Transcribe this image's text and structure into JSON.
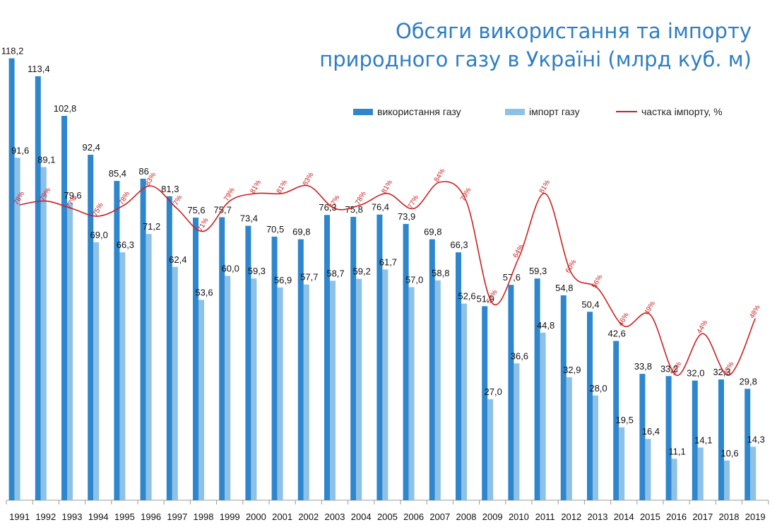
{
  "colors": {
    "usage": "#2e86cd",
    "import": "#8ec1e6",
    "share": "#cc1f1f",
    "title": "#2f7ec2",
    "axis": "#999999"
  },
  "chart_data": {
    "type": "bar",
    "title": [
      "Обсяги використання та імпорту",
      "природного газу в Україні (млрд куб. м)"
    ],
    "categories": [
      "1991",
      "1992",
      "1993",
      "1994",
      "1995",
      "1996",
      "1997",
      "1998",
      "1999",
      "2000",
      "2001",
      "2002",
      "2003",
      "2004",
      "2005",
      "2006",
      "2007",
      "2008",
      "2009",
      "2010",
      "2011",
      "2012",
      "2013",
      "2014",
      "2015",
      "2016",
      "2017",
      "2018",
      "2019"
    ],
    "series": [
      {
        "name": "використання газу",
        "type": "bar",
        "values": [
          118.2,
          113.4,
          102.8,
          92.4,
          85.4,
          86,
          81.3,
          75.6,
          75.7,
          73.4,
          70.5,
          69.8,
          76.3,
          75.8,
          76.4,
          73.9,
          69.8,
          66.3,
          51.9,
          57.6,
          59.3,
          54.8,
          50.4,
          42.6,
          33.8,
          33.2,
          32.0,
          32.3,
          29.8
        ],
        "labels": [
          "118,2",
          "113,4",
          "102,8",
          "92,4",
          "85,4",
          "86",
          "81,3",
          "75,6",
          "75,7",
          "73,4",
          "70,5",
          "69,8",
          "76,3",
          "75,8",
          "76,4",
          "73,9",
          "69,8",
          "66,3",
          "51,9",
          "57,6",
          "59,3",
          "54,8",
          "50,4",
          "42,6",
          "33,8",
          "33,2",
          "32,0",
          "32,3",
          "29,8"
        ]
      },
      {
        "name": "імпорт газу",
        "type": "bar",
        "values": [
          91.6,
          89.1,
          79.6,
          69.0,
          66.3,
          71.2,
          62.4,
          53.6,
          60.0,
          59.3,
          56.9,
          57.7,
          58.7,
          59.2,
          61.7,
          57.0,
          58.8,
          52.6,
          27.0,
          36.6,
          44.8,
          32.9,
          28.0,
          19.5,
          16.4,
          11.1,
          14.1,
          10.6,
          14.3
        ],
        "labels": [
          "91,6",
          "89,1",
          "79,6",
          "69,0",
          "66,3",
          "71,2",
          "62,4",
          "53,6",
          "60,0",
          "59,3",
          "56,9",
          "57,7",
          "58,7",
          "59,2",
          "61,7",
          "57,0",
          "58,8",
          "52,6",
          "27,0",
          "36,6",
          "44,8",
          "32,9",
          "28,0",
          "19,5",
          "16,4",
          "11,1",
          "14,1",
          "10,6",
          "14,3"
        ]
      },
      {
        "name": "частка імпорту, %",
        "type": "line",
        "values": [
          78,
          79,
          77,
          75,
          78,
          83,
          77,
          71,
          79,
          81,
          81,
          83,
          77,
          78,
          81,
          77,
          84,
          79,
          52,
          64,
          81,
          60,
          56,
          46,
          49,
          33,
          44,
          33,
          48
        ],
        "labels": [
          "78%",
          "79%",
          "77%",
          "75%",
          "78%",
          "83%",
          "77%",
          "71%",
          "79%",
          "81%",
          "81%",
          "83%",
          "77%",
          "78%",
          "81%",
          "77%",
          "84%",
          "79%",
          "52%",
          "64%",
          "81%",
          "60%",
          "56%",
          "46%",
          "49%",
          "33%",
          "44%",
          "33%",
          "48%"
        ]
      }
    ],
    "ylim": [
      0,
      120
    ],
    "y2lim": [
      0,
      125
    ],
    "legend_position": "top-right",
    "grid": false
  }
}
